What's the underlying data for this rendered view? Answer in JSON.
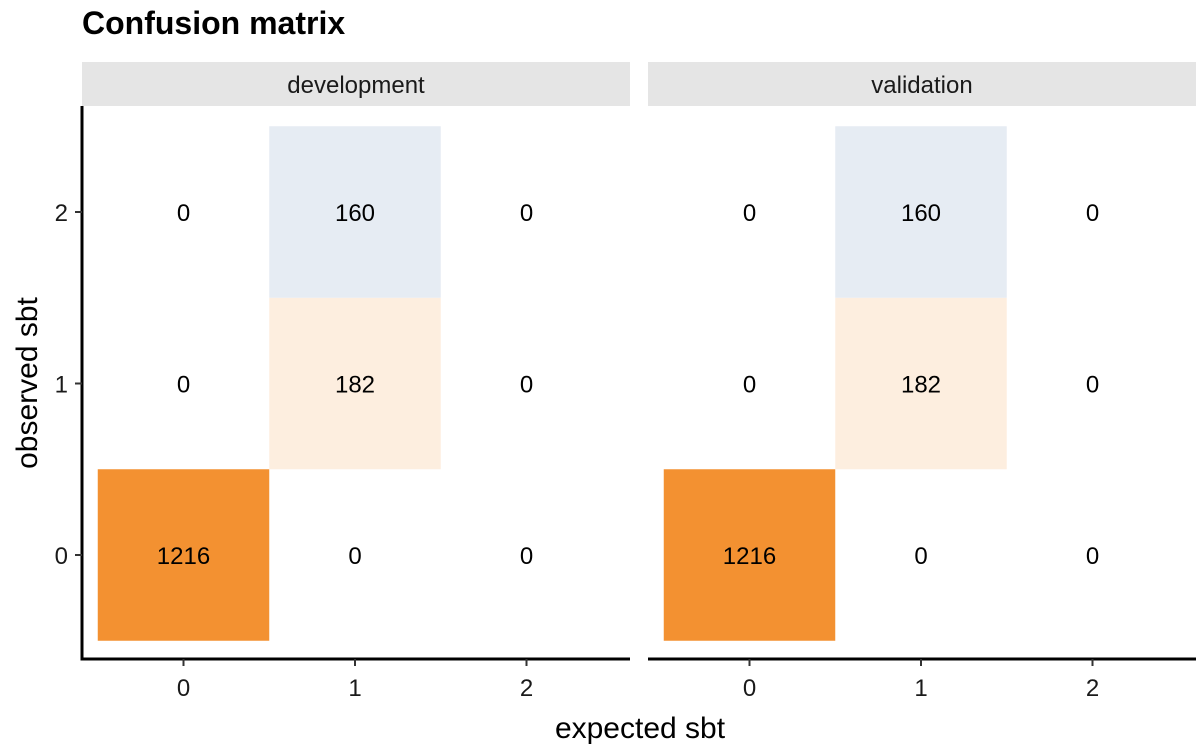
{
  "chart_data": {
    "type": "heatmap",
    "title": "Confusion matrix",
    "xlabel": "expected sbt",
    "ylabel": "observed sbt",
    "x_categories": [
      "0",
      "1",
      "2"
    ],
    "y_categories": [
      "0",
      "1",
      "2"
    ],
    "fill_colors": {
      "high": "#f39131",
      "mid": "#fdeedf",
      "low": "#e6ecf3",
      "zero": "#ffffff"
    },
    "panels": [
      {
        "name": "development",
        "cells": [
          {
            "expected": "0",
            "observed": "0",
            "count": 1216
          },
          {
            "expected": "1",
            "observed": "0",
            "count": 0
          },
          {
            "expected": "2",
            "observed": "0",
            "count": 0
          },
          {
            "expected": "0",
            "observed": "1",
            "count": 0
          },
          {
            "expected": "1",
            "observed": "1",
            "count": 182
          },
          {
            "expected": "2",
            "observed": "1",
            "count": 0
          },
          {
            "expected": "0",
            "observed": "2",
            "count": 0
          },
          {
            "expected": "1",
            "observed": "2",
            "count": 160
          },
          {
            "expected": "2",
            "observed": "2",
            "count": 0
          }
        ]
      },
      {
        "name": "validation",
        "cells": [
          {
            "expected": "0",
            "observed": "0",
            "count": 1216
          },
          {
            "expected": "1",
            "observed": "0",
            "count": 0
          },
          {
            "expected": "2",
            "observed": "0",
            "count": 0
          },
          {
            "expected": "0",
            "observed": "1",
            "count": 0
          },
          {
            "expected": "1",
            "observed": "1",
            "count": 182
          },
          {
            "expected": "2",
            "observed": "1",
            "count": 0
          },
          {
            "expected": "0",
            "observed": "2",
            "count": 0
          },
          {
            "expected": "1",
            "observed": "2",
            "count": 160
          },
          {
            "expected": "2",
            "observed": "2",
            "count": 0
          }
        ]
      }
    ]
  }
}
